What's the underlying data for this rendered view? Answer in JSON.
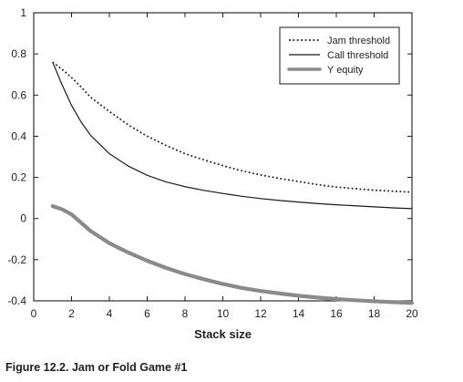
{
  "caption": "Figure 12.2. Jam or Fold Game #1",
  "chart_data": {
    "type": "line",
    "title": "",
    "xlabel": "Stack size",
    "ylabel": "",
    "xlim": [
      0,
      20
    ],
    "ylim": [
      -0.4,
      1
    ],
    "xticks": [
      0,
      2,
      4,
      6,
      8,
      10,
      12,
      14,
      16,
      18,
      20
    ],
    "yticks": [
      -0.4,
      -0.2,
      0,
      0.2,
      0.4,
      0.6,
      0.8,
      1
    ],
    "ytick_labels": [
      "-0.4",
      "-0.2",
      "0",
      "0.2",
      "0.4",
      "0.6",
      "0.8",
      "1"
    ],
    "grid": false,
    "legend_position": "top-right",
    "series": [
      {
        "name": "Jam threshold",
        "style": "dotted",
        "color": "#1a1a1a",
        "x": [
          1,
          1.5,
          2,
          2.5,
          3,
          4,
          5,
          6,
          7,
          8,
          9,
          10,
          11,
          12,
          13,
          14,
          15,
          16,
          17,
          18,
          19,
          20
        ],
        "y": [
          0.76,
          0.725,
          0.685,
          0.64,
          0.59,
          0.52,
          0.455,
          0.4,
          0.355,
          0.315,
          0.285,
          0.257,
          0.232,
          0.212,
          0.195,
          0.18,
          0.165,
          0.153,
          0.145,
          0.138,
          0.133,
          0.128
        ]
      },
      {
        "name": "Call threshold",
        "style": "solid",
        "color": "#1a1a1a",
        "x": [
          1,
          1.5,
          2,
          2.5,
          3,
          4,
          5,
          6,
          7,
          8,
          9,
          10,
          11,
          12,
          13,
          14,
          15,
          16,
          17,
          18,
          19,
          20
        ],
        "y": [
          0.76,
          0.65,
          0.55,
          0.47,
          0.405,
          0.315,
          0.255,
          0.21,
          0.178,
          0.155,
          0.137,
          0.122,
          0.108,
          0.097,
          0.088,
          0.08,
          0.073,
          0.067,
          0.062,
          0.057,
          0.052,
          0.048
        ]
      },
      {
        "name": "Y equity",
        "style": "thick",
        "color": "#8a8a8a",
        "x": [
          1,
          1.5,
          2,
          2.5,
          3,
          4,
          5,
          6,
          7,
          8,
          9,
          10,
          11,
          12,
          13,
          14,
          15,
          16,
          17,
          18,
          19,
          20
        ],
        "y": [
          0.06,
          0.045,
          0.02,
          -0.02,
          -0.06,
          -0.12,
          -0.165,
          -0.205,
          -0.24,
          -0.27,
          -0.295,
          -0.318,
          -0.337,
          -0.352,
          -0.364,
          -0.375,
          -0.384,
          -0.391,
          -0.397,
          -0.402,
          -0.406,
          -0.41
        ]
      }
    ]
  }
}
